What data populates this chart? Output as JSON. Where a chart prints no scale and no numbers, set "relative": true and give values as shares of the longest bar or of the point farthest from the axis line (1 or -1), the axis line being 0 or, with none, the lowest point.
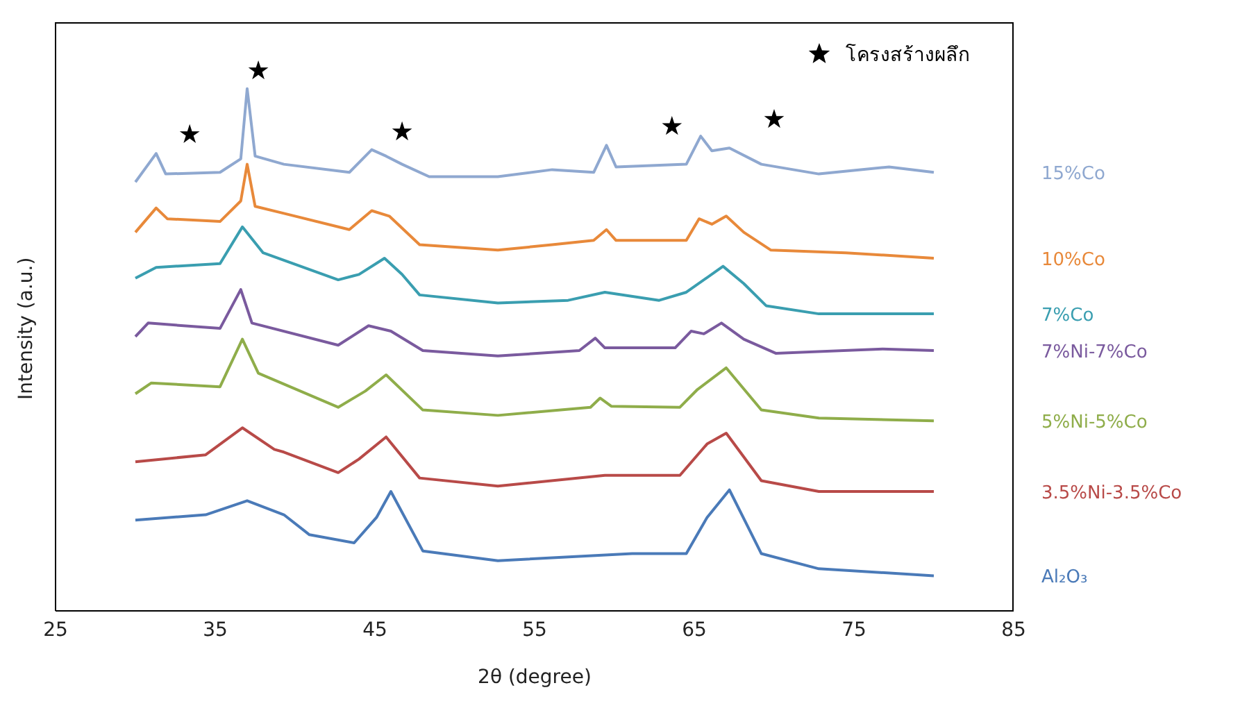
{
  "chart_data": {
    "type": "line",
    "xlabel": "2θ (degree)",
    "ylabel": "Intensity (a.u.)",
    "relative": true,
    "xlim": [
      25,
      85
    ],
    "xticks": [
      25,
      35,
      45,
      55,
      65,
      75,
      85
    ],
    "legend": "top right",
    "marker": "none",
    "series": [
      {
        "name": "15%Co",
        "color": "#8fa8d0",
        "x": [
          30.0,
          31.3,
          31.9,
          35.3,
          36.6,
          37.0,
          37.5,
          39.3,
          43.4,
          44.8,
          45.7,
          46.7,
          48.4,
          52.7,
          56.1,
          58.7,
          59.5,
          60.1,
          64.5,
          65.4,
          66.1,
          67.2,
          69.2,
          72.8,
          77.2,
          80.0
        ],
        "values": [
          0.794,
          0.847,
          0.809,
          0.812,
          0.837,
          0.967,
          0.842,
          0.827,
          0.812,
          0.854,
          0.842,
          0.827,
          0.804,
          0.804,
          0.817,
          0.812,
          0.862,
          0.822,
          0.827,
          0.879,
          0.852,
          0.857,
          0.827,
          0.809,
          0.822,
          0.812
        ]
      },
      {
        "name": "10%Co",
        "color": "#e8893a",
        "x": [
          30.0,
          31.3,
          32.0,
          35.3,
          36.6,
          37.0,
          37.5,
          39.3,
          43.4,
          44.8,
          45.9,
          47.8,
          52.7,
          56.1,
          58.7,
          59.5,
          60.1,
          64.5,
          65.3,
          66.1,
          67.0,
          68.1,
          69.8,
          74.5,
          80.0
        ],
        "values": [
          0.701,
          0.746,
          0.726,
          0.721,
          0.759,
          0.827,
          0.749,
          0.736,
          0.706,
          0.741,
          0.731,
          0.678,
          0.668,
          0.678,
          0.686,
          0.706,
          0.686,
          0.686,
          0.726,
          0.716,
          0.731,
          0.701,
          0.668,
          0.663,
          0.653
        ]
      },
      {
        "name": "7%Co",
        "color": "#3a9eb0",
        "x": [
          30.0,
          31.3,
          35.3,
          36.7,
          38.0,
          42.7,
          44.0,
          45.6,
          46.7,
          47.8,
          52.7,
          57.1,
          59.4,
          62.8,
          64.5,
          66.8,
          68.1,
          69.5,
          72.8,
          80.0
        ],
        "values": [
          0.616,
          0.636,
          0.643,
          0.711,
          0.663,
          0.613,
          0.623,
          0.653,
          0.623,
          0.585,
          0.57,
          0.575,
          0.59,
          0.575,
          0.59,
          0.638,
          0.606,
          0.565,
          0.55,
          0.55
        ]
      },
      {
        "name": "7%Ni-7%Co",
        "color": "#7a5a9e",
        "x": [
          30.0,
          30.8,
          35.3,
          36.6,
          37.3,
          42.7,
          44.6,
          46.0,
          48.0,
          52.7,
          57.8,
          58.8,
          59.4,
          63.8,
          64.8,
          65.6,
          66.7,
          68.1,
          70.1,
          76.8,
          80.0
        ],
        "values": [
          0.508,
          0.533,
          0.523,
          0.595,
          0.533,
          0.492,
          0.528,
          0.518,
          0.482,
          0.472,
          0.482,
          0.505,
          0.487,
          0.487,
          0.518,
          0.513,
          0.533,
          0.503,
          0.477,
          0.485,
          0.482
        ]
      },
      {
        "name": "5%Ni-5%Co",
        "color": "#8fad4a",
        "x": [
          30.0,
          31.0,
          35.3,
          36.7,
          37.7,
          42.7,
          44.4,
          45.7,
          48.0,
          52.7,
          58.5,
          59.1,
          59.8,
          64.1,
          65.2,
          67.0,
          69.2,
          72.8,
          80.0
        ],
        "values": [
          0.402,
          0.422,
          0.415,
          0.503,
          0.44,
          0.377,
          0.407,
          0.437,
          0.372,
          0.362,
          0.377,
          0.394,
          0.379,
          0.377,
          0.41,
          0.45,
          0.372,
          0.357,
          0.352
        ]
      },
      {
        "name": "3.5%Ni-3.5%Co",
        "color": "#b84a48",
        "x": [
          30.0,
          34.4,
          36.7,
          38.7,
          39.3,
          42.7,
          44.0,
          45.7,
          47.8,
          52.7,
          59.4,
          64.1,
          65.8,
          67.0,
          69.2,
          72.8,
          80.0
        ],
        "values": [
          0.276,
          0.289,
          0.339,
          0.299,
          0.294,
          0.256,
          0.281,
          0.322,
          0.246,
          0.231,
          0.251,
          0.251,
          0.309,
          0.329,
          0.241,
          0.221,
          0.221
        ]
      },
      {
        "name": "Al₂O₃",
        "color": "#4a7ab8",
        "x": [
          30.0,
          34.4,
          37.0,
          39.3,
          40.9,
          43.7,
          45.1,
          46.0,
          48.0,
          52.7,
          61.1,
          64.5,
          65.8,
          67.2,
          69.2,
          72.8,
          80.0
        ],
        "values": [
          0.168,
          0.178,
          0.204,
          0.178,
          0.141,
          0.126,
          0.173,
          0.221,
          0.111,
          0.093,
          0.106,
          0.106,
          0.173,
          0.224,
          0.106,
          0.078,
          0.065
        ]
      },
      {
        "name": "โครงสร้างผลึก",
        "type": "scatter",
        "color": "#000000",
        "marker": "star",
        "x": [
          33.4,
          37.7,
          46.7,
          63.6,
          70.0
        ],
        "values": [
          0.882,
          1.0,
          0.887,
          0.897,
          0.91
        ]
      }
    ]
  }
}
